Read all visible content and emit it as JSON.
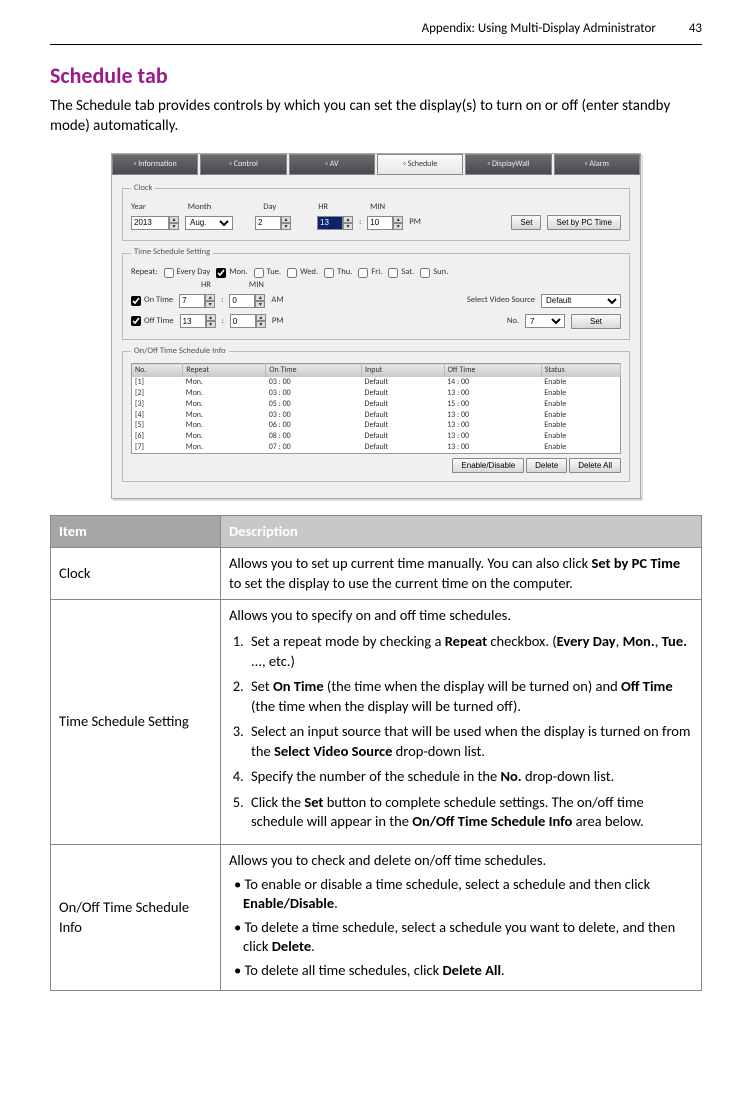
{
  "header": {
    "appendix": "Appendix: Using Multi-Display Administrator",
    "page": "43"
  },
  "section": {
    "title": "Schedule tab",
    "intro": "The Schedule tab provides controls by which you can set the display(s) to turn on or off (enter standby mode) automatically."
  },
  "shot": {
    "tabs": [
      "Information",
      "Control",
      "AV",
      "Schedule",
      "DisplayWall",
      "Alarm"
    ],
    "active_tab": 3,
    "clock": {
      "legend": "Clock",
      "year_lbl": "Year",
      "year": "2013",
      "month_lbl": "Month",
      "month": "Aug.",
      "day_lbl": "Day",
      "day": "2",
      "hr_lbl": "HR",
      "hr": "13",
      "min_lbl": "MIN",
      "min": "10",
      "ampm": "PM",
      "set": "Set",
      "setpc": "Set by PC Time"
    },
    "tss": {
      "legend": "Time Schedule Setting",
      "repeat_lbl": "Repeat:",
      "days": [
        "Every Day",
        "Mon.",
        "Tue.",
        "Wed.",
        "Thu.",
        "Fri.",
        "Sat.",
        "Sun."
      ],
      "checked_day": 1,
      "hr_lbl": "HR",
      "min_lbl": "MIN",
      "ontime_lbl": "On Time",
      "ontime_h": "7",
      "ontime_m": "0",
      "ontime_ap": "AM",
      "src_lbl": "Select Video Source",
      "src_val": "Default",
      "offtime_lbl": "Off Time",
      "offtime_h": "13",
      "offtime_m": "0",
      "offtime_ap": "PM",
      "no_lbl": "No.",
      "no_val": "7",
      "set": "Set"
    },
    "info": {
      "legend": "On/Off Time Schedule Info",
      "cols": [
        "No.",
        "Repeat",
        "On Time",
        "Input",
        "Off Time",
        "Status"
      ],
      "rows": [
        [
          "[1]",
          "Mon.",
          "03 : 00",
          "Default",
          "14 : 00",
          "Enable"
        ],
        [
          "[2]",
          "Mon.",
          "03 : 00",
          "Default",
          "13 : 00",
          "Enable"
        ],
        [
          "[3]",
          "Mon.",
          "05 : 00",
          "Default",
          "15 : 00",
          "Enable"
        ],
        [
          "[4]",
          "Mon.",
          "03 : 00",
          "Default",
          "13 : 00",
          "Enable"
        ],
        [
          "[5]",
          "Mon.",
          "06 : 00",
          "Default",
          "13 : 00",
          "Enable"
        ],
        [
          "[6]",
          "Mon.",
          "08 : 00",
          "Default",
          "13 : 00",
          "Enable"
        ],
        [
          "[7]",
          "Mon.",
          "07 : 00",
          "Default",
          "13 : 00",
          "Enable"
        ]
      ],
      "enable": "Enable/Disable",
      "delete": "Delete",
      "deleteall": "Delete All"
    }
  },
  "table": {
    "h_item": "Item",
    "h_desc": "Description",
    "r1_item": "Clock",
    "r1_a": "Allows you to set up current time manually. You can also click ",
    "r1_b": "Set by PC Time",
    "r1_c": " to set the display to use the current time on the computer.",
    "r2_item": "Time Schedule Setting",
    "r2_lead": "Allows you to specify on and off time schedules.",
    "r2_1a": "Set a repeat mode by checking a ",
    "r2_1b": "Repeat",
    "r2_1c": " checkbox. (",
    "r2_1d": "Every Day",
    "r2_1e": ", ",
    "r2_1f": "Mon.",
    "r2_1g": ", ",
    "r2_1h": "Tue.",
    "r2_1i": " ..., etc.)",
    "r2_2a": "Set ",
    "r2_2b": "On Time",
    "r2_2c": " (the time when the display will be turned on) and ",
    "r2_2d": "Off Time",
    "r2_2e": " (the time when the display will be turned off).",
    "r2_3a": "Select an input source that will be used when the display is turned on from the ",
    "r2_3b": "Select Video Source",
    "r2_3c": " drop-down list.",
    "r2_4a": "Specify the number of the schedule in the ",
    "r2_4b": "No.",
    "r2_4c": " drop-down list.",
    "r2_5a": "Click the ",
    "r2_5b": "Set",
    "r2_5c": " button to complete schedule settings. The on/off time schedule will appear in the ",
    "r2_5d": "On/Off Time Schedule Info",
    "r2_5e": " area below.",
    "r3_item": "On/Off Time Schedule Info",
    "r3_lead": "Allows you to check and delete on/off time schedules.",
    "r3_b1a": "• To enable or disable a time schedule, select a schedule and then click ",
    "r3_b1b": "Enable/Disable",
    "r3_b1c": ".",
    "r3_b2a": "• To delete a time schedule, select a schedule you want to delete, and then click ",
    "r3_b2b": "Delete",
    "r3_b2c": ".",
    "r3_b3a": "• To delete all time schedules, click ",
    "r3_b3b": "Delete All",
    "r3_b3c": "."
  }
}
